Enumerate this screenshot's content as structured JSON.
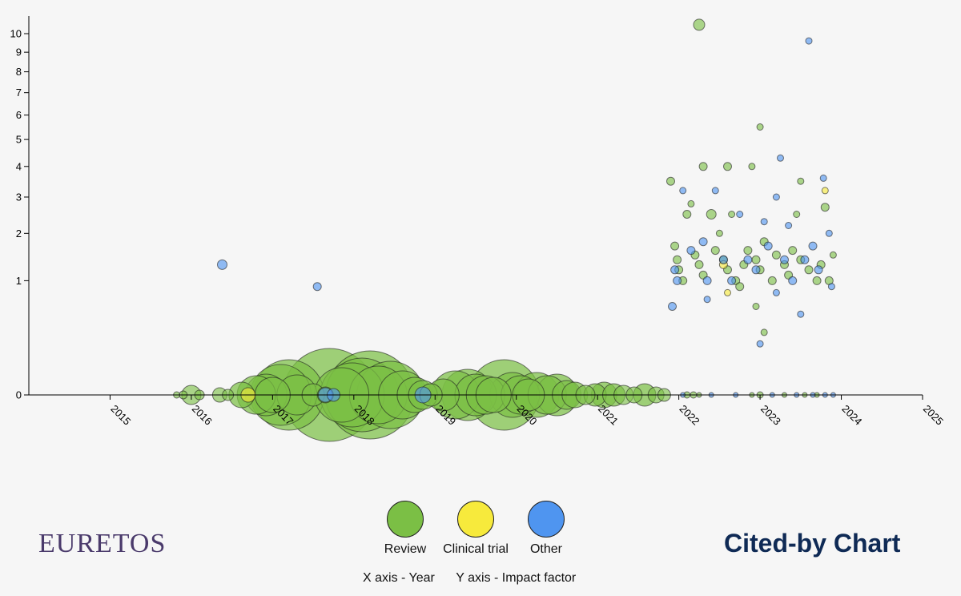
{
  "legend": {
    "items": [
      {
        "label": "Review",
        "color": "#7bbf45"
      },
      {
        "label": "Clinical trial",
        "color": "#f7ea3c"
      },
      {
        "label": "Other",
        "color": "#4f95f0"
      }
    ]
  },
  "axis_note": {
    "x": "X axis - Year",
    "y": "Y axis - Impact factor"
  },
  "brand": {
    "logo": "EURETOS",
    "title": "Cited-by Chart"
  },
  "chart_data": {
    "type": "scatter",
    "title": "Cited-by Chart",
    "xlabel": "X axis - Year",
    "ylabel": "Y axis - Impact factor",
    "xlim": [
      2014,
      2025
    ],
    "ylim": [
      0,
      11
    ],
    "yscale": "sqrt",
    "grid": false,
    "legend_position": "bottom-center",
    "x_ticks": [
      "2015",
      "2016",
      "2017",
      "2018",
      "2019",
      "2020",
      "2021",
      "2022",
      "2023",
      "2024",
      "2025"
    ],
    "y_ticks": [
      "0",
      "1",
      "2",
      "3",
      "4",
      "5",
      "6",
      "7",
      "8",
      "9",
      "10"
    ],
    "colors": {
      "review": "#7bbf45",
      "clinical": "#f7ea3c",
      "other": "#4f95f0"
    },
    "series": [
      {
        "name": "Review",
        "key": "review",
        "points": [
          [
            2015.82,
            0,
            4
          ],
          [
            2015.9,
            0,
            5
          ],
          [
            2016.0,
            0,
            12
          ],
          [
            2016.1,
            0,
            6
          ],
          [
            2016.35,
            0,
            9
          ],
          [
            2016.45,
            0,
            7
          ],
          [
            2016.62,
            0,
            16
          ],
          [
            2016.8,
            0,
            24
          ],
          [
            2016.92,
            0,
            26
          ],
          [
            2017.0,
            0,
            22
          ],
          [
            2017.1,
            0,
            38
          ],
          [
            2017.2,
            0,
            44
          ],
          [
            2017.3,
            0,
            25
          ],
          [
            2017.5,
            0,
            14
          ],
          [
            2017.65,
            0,
            10
          ],
          [
            2017.7,
            0,
            58
          ],
          [
            2017.85,
            0,
            34
          ],
          [
            2017.98,
            0,
            40
          ],
          [
            2018.1,
            0,
            46
          ],
          [
            2018.2,
            0,
            55
          ],
          [
            2018.3,
            0,
            36
          ],
          [
            2018.45,
            0,
            42
          ],
          [
            2018.6,
            0,
            30
          ],
          [
            2018.75,
            0,
            22
          ],
          [
            2018.85,
            0,
            18
          ],
          [
            2018.95,
            0,
            14
          ],
          [
            2019.1,
            0,
            20
          ],
          [
            2019.25,
            0,
            30
          ],
          [
            2019.4,
            0,
            32
          ],
          [
            2019.5,
            0,
            26
          ],
          [
            2019.62,
            0,
            24
          ],
          [
            2019.72,
            0,
            22
          ],
          [
            2019.85,
            0,
            44
          ],
          [
            2019.95,
            0,
            28
          ],
          [
            2020.05,
            0,
            24
          ],
          [
            2020.15,
            0,
            20
          ],
          [
            2020.25,
            0,
            28
          ],
          [
            2020.38,
            0,
            24
          ],
          [
            2020.5,
            0,
            26
          ],
          [
            2020.62,
            0,
            18
          ],
          [
            2020.72,
            0,
            16
          ],
          [
            2020.85,
            0,
            12
          ],
          [
            2020.97,
            0,
            14
          ],
          [
            2021.08,
            0,
            16
          ],
          [
            2021.2,
            0,
            14
          ],
          [
            2021.32,
            0,
            12
          ],
          [
            2021.45,
            0,
            10
          ],
          [
            2021.58,
            0,
            14
          ],
          [
            2021.72,
            0,
            10
          ],
          [
            2021.82,
            0,
            8
          ],
          [
            2022.1,
            0,
            4
          ],
          [
            2022.18,
            0,
            4
          ],
          [
            2022.25,
            0,
            3
          ],
          [
            2022.9,
            0,
            3
          ],
          [
            2023.0,
            0,
            4
          ],
          [
            2023.3,
            0,
            3
          ],
          [
            2023.55,
            0,
            3
          ],
          [
            2023.7,
            0,
            3
          ],
          [
            2021.9,
            3.5,
            5
          ],
          [
            2021.95,
            1.7,
            5
          ],
          [
            2021.98,
            1.4,
            5
          ],
          [
            2022.0,
            1.2,
            5
          ],
          [
            2022.05,
            1.0,
            5
          ],
          [
            2022.1,
            2.5,
            5
          ],
          [
            2022.2,
            1.5,
            5
          ],
          [
            2022.25,
            1.3,
            5
          ],
          [
            2022.3,
            1.1,
            5
          ],
          [
            2022.4,
            2.5,
            6
          ],
          [
            2022.45,
            1.6,
            5
          ],
          [
            2022.55,
            1.4,
            5
          ],
          [
            2022.6,
            1.2,
            5
          ],
          [
            2022.7,
            1.0,
            5
          ],
          [
            2022.75,
            0.9,
            5
          ],
          [
            2022.8,
            1.3,
            5
          ],
          [
            2022.85,
            1.6,
            5
          ],
          [
            2022.95,
            1.4,
            5
          ],
          [
            2023.0,
            1.2,
            5
          ],
          [
            2023.05,
            1.8,
            5
          ],
          [
            2023.15,
            1.0,
            5
          ],
          [
            2023.2,
            1.5,
            5
          ],
          [
            2023.3,
            1.3,
            5
          ],
          [
            2023.35,
            1.1,
            5
          ],
          [
            2023.4,
            1.6,
            5
          ],
          [
            2023.5,
            1.4,
            5
          ],
          [
            2023.6,
            1.2,
            5
          ],
          [
            2023.7,
            1.0,
            5
          ],
          [
            2023.75,
            1.3,
            5
          ],
          [
            2023.8,
            2.7,
            5
          ],
          [
            2022.3,
            4.0,
            5
          ],
          [
            2022.6,
            4.0,
            5
          ],
          [
            2022.9,
            4.0,
            4
          ],
          [
            2023.0,
            5.5,
            4
          ],
          [
            2022.25,
            10.5,
            7
          ],
          [
            2022.15,
            2.8,
            4
          ],
          [
            2022.5,
            2.0,
            4
          ],
          [
            2022.95,
            0.6,
            4
          ],
          [
            2023.05,
            0.3,
            4
          ],
          [
            2023.85,
            1.0,
            5
          ],
          [
            2023.5,
            3.5,
            4
          ],
          [
            2023.45,
            2.5,
            4
          ],
          [
            2022.65,
            2.5,
            4
          ],
          [
            2023.9,
            1.5,
            4
          ]
        ]
      },
      {
        "name": "Clinical trial",
        "key": "clinical",
        "points": [
          [
            2016.7,
            0,
            9
          ],
          [
            2022.55,
            1.3,
            5
          ],
          [
            2022.6,
            0.8,
            4
          ],
          [
            2023.8,
            3.2,
            4
          ]
        ]
      },
      {
        "name": "Other",
        "key": "other",
        "points": [
          [
            2016.38,
            1.3,
            6
          ],
          [
            2017.55,
            0.9,
            5
          ],
          [
            2017.65,
            0,
            9
          ],
          [
            2017.75,
            0,
            8
          ],
          [
            2018.85,
            0,
            10
          ],
          [
            2021.92,
            0.6,
            5
          ],
          [
            2021.95,
            1.2,
            5
          ],
          [
            2021.98,
            1.0,
            5
          ],
          [
            2022.05,
            3.2,
            4
          ],
          [
            2022.15,
            1.6,
            5
          ],
          [
            2022.3,
            1.8,
            5
          ],
          [
            2022.35,
            1.0,
            5
          ],
          [
            2022.45,
            3.2,
            4
          ],
          [
            2022.55,
            1.4,
            5
          ],
          [
            2022.65,
            1.0,
            5
          ],
          [
            2022.75,
            2.5,
            4
          ],
          [
            2022.85,
            1.4,
            5
          ],
          [
            2022.95,
            1.2,
            5
          ],
          [
            2023.0,
            0.2,
            4
          ],
          [
            2023.1,
            1.7,
            5
          ],
          [
            2023.2,
            3.0,
            4
          ],
          [
            2023.25,
            4.3,
            4
          ],
          [
            2023.3,
            1.4,
            5
          ],
          [
            2023.35,
            2.2,
            4
          ],
          [
            2023.4,
            1.0,
            5
          ],
          [
            2023.5,
            0.5,
            4
          ],
          [
            2023.55,
            1.4,
            5
          ],
          [
            2023.6,
            9.6,
            4
          ],
          [
            2023.65,
            1.7,
            5
          ],
          [
            2023.72,
            1.2,
            5
          ],
          [
            2023.78,
            3.6,
            4
          ],
          [
            2023.85,
            2.0,
            4
          ],
          [
            2023.88,
            0.9,
            4
          ],
          [
            2022.05,
            0,
            3
          ],
          [
            2022.4,
            0,
            3
          ],
          [
            2022.7,
            0,
            3
          ],
          [
            2023.15,
            0,
            3
          ],
          [
            2023.45,
            0,
            3
          ],
          [
            2023.65,
            0,
            3
          ],
          [
            2023.8,
            0,
            3
          ],
          [
            2023.9,
            0,
            3
          ],
          [
            2022.35,
            0.7,
            4
          ],
          [
            2023.05,
            2.3,
            4
          ],
          [
            2023.2,
            0.8,
            4
          ]
        ]
      }
    ]
  }
}
